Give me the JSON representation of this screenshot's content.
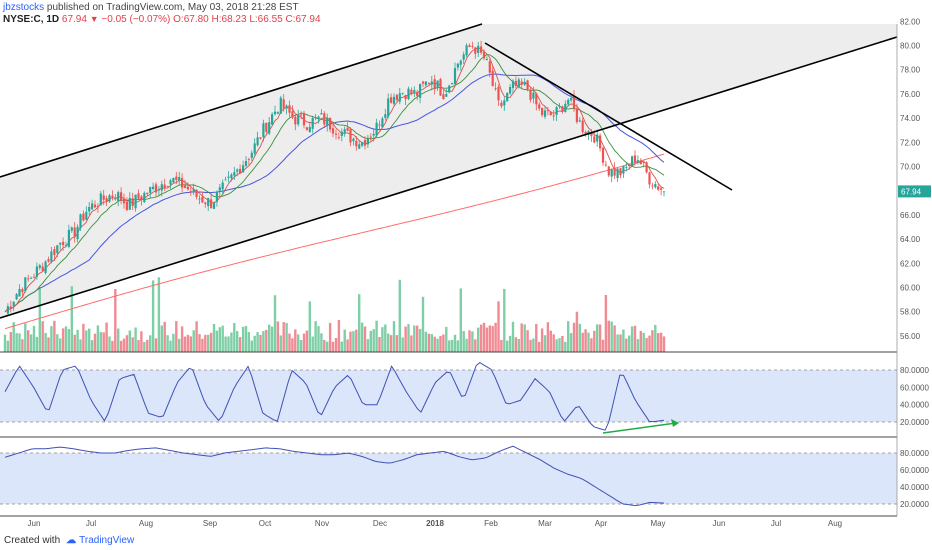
{
  "header": {
    "user": "jbzstocks",
    "published_text": "published on TradingView.com, May 03, 2018 21:28 EST",
    "symbol": "NYSE:C, 1D",
    "last": "67.94",
    "change": "−0.05 (−0.07%)",
    "open": "O:67.80",
    "high": "H:68.23",
    "low": "L:66.55",
    "close": "C:67.94"
  },
  "price_axis": {
    "ticks": [
      "82.00",
      "80.00",
      "78.00",
      "76.00",
      "74.00",
      "72.00",
      "70.00",
      "68.00",
      "66.00",
      "64.00",
      "62.00",
      "60.00",
      "58.00",
      "56.00"
    ],
    "current_label": "67.94"
  },
  "osc_axis_1": {
    "ticks": [
      "80.0000",
      "60.0000",
      "40.0000",
      "20.0000"
    ]
  },
  "osc_axis_2": {
    "ticks": [
      "80.0000",
      "60.0000",
      "40.0000",
      "20.0000"
    ]
  },
  "time_axis": {
    "ticks": [
      "Jun",
      "Jul",
      "Aug",
      "Sep",
      "Oct",
      "Nov",
      "Dec",
      "2018",
      "Feb",
      "Mar",
      "Apr",
      "May",
      "Jun",
      "Jul",
      "Aug"
    ]
  },
  "footer": {
    "created_with": "Created with",
    "brand": "TradingView"
  },
  "colors": {
    "up": "#26a69a",
    "down": "#ef5350",
    "vol_up": "#7fcfa6",
    "vol_down": "#f08a93",
    "ma_fast": "#d9534f",
    "ma_mid": "#3c8f3c",
    "ma_blue": "#4a56e0",
    "ma_200": "#ff6b6b",
    "osc_line": "#3f51b5",
    "osc_band": "#dbe6fa",
    "divergence": "#22aa44",
    "trendline": "#000000",
    "channel_fill": "#ededed"
  },
  "chart_data": {
    "type": "candlestick",
    "symbol": "NYSE:C",
    "interval": "1D",
    "price_range": [
      55,
      82
    ],
    "weekly_closes": [
      58.0,
      59.8,
      61.0,
      62.2,
      63.7,
      64.5,
      66.5,
      67.2,
      67.8,
      66.8,
      67.6,
      68.3,
      69.0,
      68.4,
      67.5,
      67.0,
      68.3,
      69.8,
      71.3,
      73.4,
      75.2,
      74.0,
      73.6,
      74.0,
      73.2,
      72.5,
      72.0,
      73.1,
      75.7,
      76.2,
      76.0,
      77.3,
      76.0,
      78.6,
      80.1,
      78.8,
      74.8,
      76.6,
      76.6,
      74.4,
      74.2,
      75.6,
      73.3,
      72.5,
      69.6,
      69.5,
      70.9,
      68.9,
      68.0
    ],
    "osc1_levels": [
      20,
      80
    ],
    "osc1_weekly": [
      55,
      85,
      60,
      30,
      80,
      85,
      45,
      20,
      70,
      75,
      30,
      25,
      65,
      85,
      40,
      20,
      60,
      85,
      30,
      20,
      80,
      65,
      25,
      60,
      75,
      40,
      40,
      85,
      55,
      30,
      65,
      80,
      45,
      90,
      80,
      40,
      45,
      70,
      55,
      20,
      40,
      15,
      10,
      80,
      45,
      20,
      22
    ],
    "osc2_levels": [
      20,
      80
    ],
    "osc2_weekly": [
      75,
      80,
      85,
      85,
      87,
      85,
      82,
      80,
      80,
      83,
      85,
      86,
      83,
      80,
      78,
      76,
      80,
      82,
      84,
      86,
      85,
      82,
      80,
      78,
      78,
      80,
      76,
      70,
      68,
      72,
      78,
      80,
      82,
      76,
      72,
      74,
      82,
      88,
      80,
      72,
      62,
      55,
      50,
      40,
      30,
      20,
      18,
      22,
      21
    ]
  }
}
